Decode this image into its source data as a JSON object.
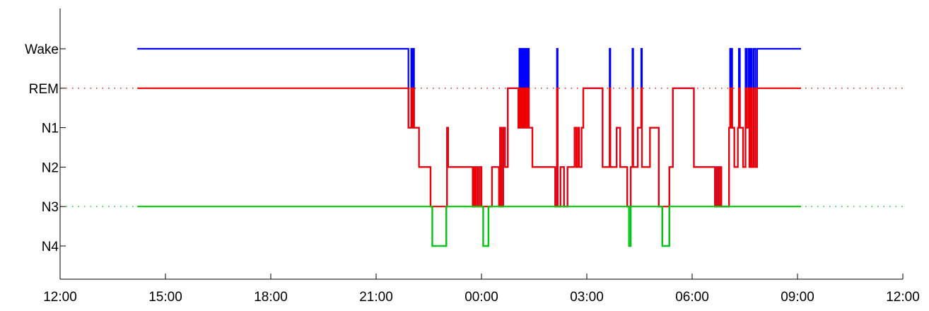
{
  "chart_data": {
    "type": "line",
    "title": "",
    "xlabel": "",
    "ylabel": "",
    "x_unit": "hours since 12:00 (date axis shown as clock time)",
    "x_ticks": [
      {
        "value": 0,
        "label": "12:00"
      },
      {
        "value": 3,
        "label": "15:00"
      },
      {
        "value": 6,
        "label": "18:00"
      },
      {
        "value": 9,
        "label": "21:00"
      },
      {
        "value": 12,
        "label": "00:00"
      },
      {
        "value": 15,
        "label": "03:00"
      },
      {
        "value": 18,
        "label": "06:00"
      },
      {
        "value": 21,
        "label": "09:00"
      },
      {
        "value": 24,
        "label": "12:00"
      }
    ],
    "xlim": [
      0,
      24
    ],
    "y_categories": [
      "Wake",
      "REM",
      "N1",
      "N2",
      "N3",
      "N4"
    ],
    "reference_lines": [
      {
        "stage": "REM",
        "color": "#ff0000",
        "style": "dotted"
      },
      {
        "stage": "N3",
        "color": "#00cc00",
        "style": "dotted"
      }
    ],
    "colors": {
      "wake_color": "#0000ff",
      "light_color": "#ee0000",
      "deep_color": "#00cc00"
    },
    "hypnogram": [
      [
        2.2,
        "Wake"
      ],
      [
        9.9,
        "Wake"
      ],
      [
        9.92,
        "N1"
      ],
      [
        10.0,
        "Wake"
      ],
      [
        10.02,
        "N1"
      ],
      [
        10.05,
        "Wake"
      ],
      [
        10.08,
        "N1"
      ],
      [
        10.22,
        "N2"
      ],
      [
        10.55,
        "N3"
      ],
      [
        10.6,
        "N4"
      ],
      [
        11.0,
        "N3"
      ],
      [
        11.02,
        "N1"
      ],
      [
        11.05,
        "N2"
      ],
      [
        11.75,
        "N3"
      ],
      [
        11.78,
        "N2"
      ],
      [
        11.82,
        "N3"
      ],
      [
        11.85,
        "N2"
      ],
      [
        11.9,
        "N3"
      ],
      [
        11.95,
        "N2"
      ],
      [
        12.0,
        "N3"
      ],
      [
        12.05,
        "N4"
      ],
      [
        12.2,
        "N3"
      ],
      [
        12.3,
        "N2"
      ],
      [
        12.5,
        "N3"
      ],
      [
        12.53,
        "N1"
      ],
      [
        12.57,
        "N3"
      ],
      [
        12.62,
        "N1"
      ],
      [
        12.67,
        "N2"
      ],
      [
        12.75,
        "REM"
      ],
      [
        13.05,
        "N1"
      ],
      [
        13.08,
        "Wake"
      ],
      [
        13.12,
        "N1"
      ],
      [
        13.15,
        "Wake"
      ],
      [
        13.18,
        "N1"
      ],
      [
        13.22,
        "Wake"
      ],
      [
        13.25,
        "N1"
      ],
      [
        13.28,
        "Wake"
      ],
      [
        13.3,
        "N1"
      ],
      [
        13.33,
        "Wake"
      ],
      [
        13.35,
        "N1"
      ],
      [
        13.45,
        "N2"
      ],
      [
        14.1,
        "N3"
      ],
      [
        14.15,
        "Wake"
      ],
      [
        14.17,
        "N3"
      ],
      [
        14.25,
        "N2"
      ],
      [
        14.35,
        "N3"
      ],
      [
        14.45,
        "N2"
      ],
      [
        14.65,
        "N1"
      ],
      [
        14.7,
        "N2"
      ],
      [
        14.75,
        "N1"
      ],
      [
        14.78,
        "N2"
      ],
      [
        14.85,
        "N1"
      ],
      [
        14.9,
        "REM"
      ],
      [
        15.45,
        "N2"
      ],
      [
        15.65,
        "Wake"
      ],
      [
        15.67,
        "N2"
      ],
      [
        15.85,
        "N1"
      ],
      [
        15.95,
        "N2"
      ],
      [
        16.15,
        "N3"
      ],
      [
        16.2,
        "N4"
      ],
      [
        16.25,
        "N2"
      ],
      [
        16.3,
        "Wake"
      ],
      [
        16.32,
        "N2"
      ],
      [
        16.45,
        "N1"
      ],
      [
        16.55,
        "Wake"
      ],
      [
        16.57,
        "N2"
      ],
      [
        16.8,
        "N1"
      ],
      [
        17.05,
        "N3"
      ],
      [
        17.15,
        "N4"
      ],
      [
        17.35,
        "N2"
      ],
      [
        17.45,
        "REM"
      ],
      [
        18.05,
        "N2"
      ],
      [
        18.65,
        "N3"
      ],
      [
        18.7,
        "N2"
      ],
      [
        18.75,
        "N3"
      ],
      [
        18.8,
        "N2"
      ],
      [
        18.83,
        "N3"
      ],
      [
        19.05,
        "N1"
      ],
      [
        19.08,
        "Wake"
      ],
      [
        19.1,
        "N1"
      ],
      [
        19.12,
        "Wake"
      ],
      [
        19.14,
        "N1"
      ],
      [
        19.2,
        "N2"
      ],
      [
        19.3,
        "N1"
      ],
      [
        19.33,
        "Wake"
      ],
      [
        19.36,
        "N1"
      ],
      [
        19.45,
        "N2"
      ],
      [
        19.52,
        "Wake"
      ],
      [
        19.55,
        "N1"
      ],
      [
        19.6,
        "Wake"
      ],
      [
        19.63,
        "N2"
      ],
      [
        19.67,
        "Wake"
      ],
      [
        19.7,
        "N2"
      ],
      [
        19.75,
        "Wake"
      ],
      [
        19.8,
        "N2"
      ],
      [
        19.85,
        "Wake"
      ],
      [
        21.1,
        "Wake"
      ]
    ]
  }
}
